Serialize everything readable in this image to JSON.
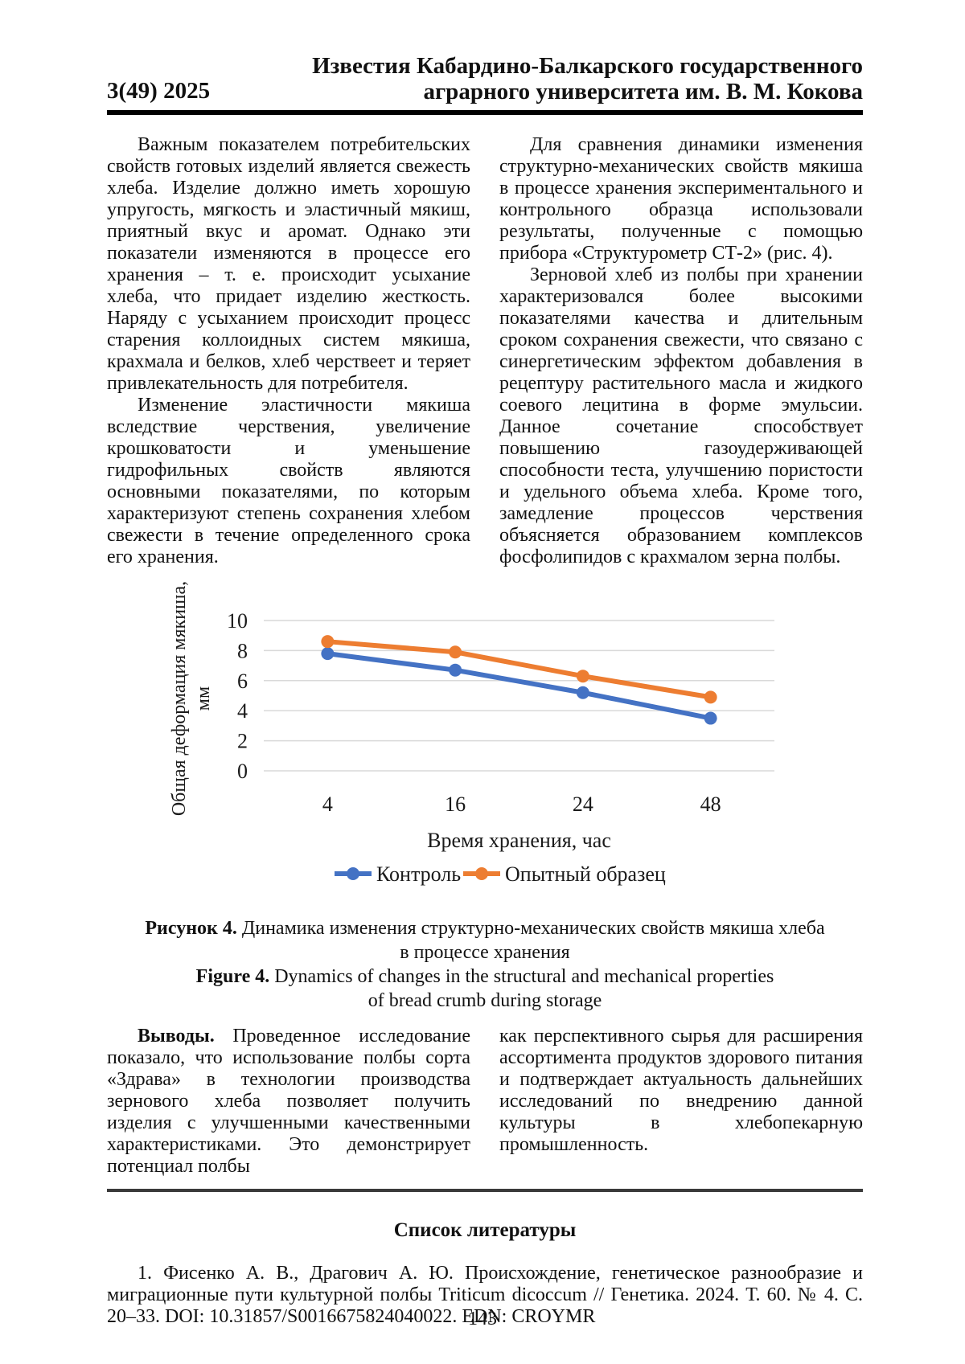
{
  "header": {
    "issue": "3(49) 2025",
    "journal_line1": "Известия Кабардино-Балкарского государственного",
    "journal_line2": "аграрного университета им. В. М. Кокова"
  },
  "body": {
    "left": [
      "Важным показателем потребительских свойств готовых изделий является свежесть хлеба. Изделие должно иметь хорошую упругость, мягкость и эластичный мякиш, приятный вкус и аромат. Однако эти показатели изменяются в процессе его хранения – т. е. происходит усыхание хлеба, что придает изделию жесткость. Наряду с усыханием происходит процесс старения коллоидных систем мякиша, крахмала и белков, хлеб черствеет и теряет привлекательность для потребителя.",
      "Изменение эластичности мякиша вследствие черствения, увеличение крошковатости и уменьшение гидрофильных свойств являются основными показателями, по которым характеризуют степень сохранения хлебом свежести в течение определенного срока его хранения."
    ],
    "right": [
      "Для сравнения динамики изменения структурно-механических свойств мякиша в процессе хранения экспериментального и контрольного образца использовали результаты, полученные с помощью прибора «Структурометр СТ-2» (рис. 4).",
      "Зерновой хлеб из полбы при хранении характеризовался более высокими показателями качества и длительным сроком сохранения свежести, что связано с синергетическим эффектом добавления в рецептуру растительного масла и жидкого соевого лецитина в форме эмульсии. Данное сочетание способствует повышению газоудерживающей способности теста, улучшению пористости и удельного объема хлеба. Кроме того, замедление процессов черствения объясняется образованием комплексов фосфолипидов с крахмалом зерна полбы."
    ]
  },
  "chart_data": {
    "type": "line",
    "categories": [
      "4",
      "16",
      "24",
      "48"
    ],
    "series": [
      {
        "name": "Контроль",
        "color": "#4472C4",
        "values": [
          7.8,
          6.7,
          5.2,
          3.5
        ]
      },
      {
        "name": "Опытный образец",
        "color": "#ED7D31",
        "values": [
          8.6,
          7.9,
          6.3,
          4.9
        ]
      }
    ],
    "xlabel": "Время хранения, час",
    "ylabel_line1": "Общая деформация мякиша,",
    "ylabel_line2": "мм",
    "ylim": [
      0,
      10
    ],
    "yticks": [
      0,
      2,
      4,
      6,
      8,
      10
    ],
    "ytick_step": 2,
    "grid": true,
    "gridline_color": "#D9D9D9",
    "legend_position": "bottom"
  },
  "figure_caption": {
    "ru_label": "Рисунок 4.",
    "ru_line1": "Динамика изменения структурно-механических свойств мякиша хлеба",
    "ru_line2": "в процессе хранения",
    "en_label": "Figure 4.",
    "en_line1": "Dynamics of changes in the structural and mechanical properties",
    "en_line2": "of bread crumb during storage"
  },
  "conclusions": {
    "label": "Выводы.",
    "left_text": "Проведенное исследование показало, что использование полбы сорта «Здрава» в технологии производства зернового хлеба позволяет получить изделия с улучшенными качественными характеристиками. Это демонстрирует потенциал полбы",
    "right_text": "как перспективного сырья для расширения ассортимента продуктов здорового питания и подтверждает актуальность дальнейших исследований по внедрению данной культуры в хлебопекарную промышленность."
  },
  "references": {
    "heading": "Список литературы",
    "items": [
      "1. Фисенко А. В., Драгович А. Ю. Происхождение, генетическое разнообразие и миграционные пути культурной полбы Triticum dicoccum // Генетика. 2024. Т. 60. № 4. С. 20–33. DOI: 10.31857/S0016675824040022. EDN: CROYMR"
    ]
  },
  "page_number": "143"
}
